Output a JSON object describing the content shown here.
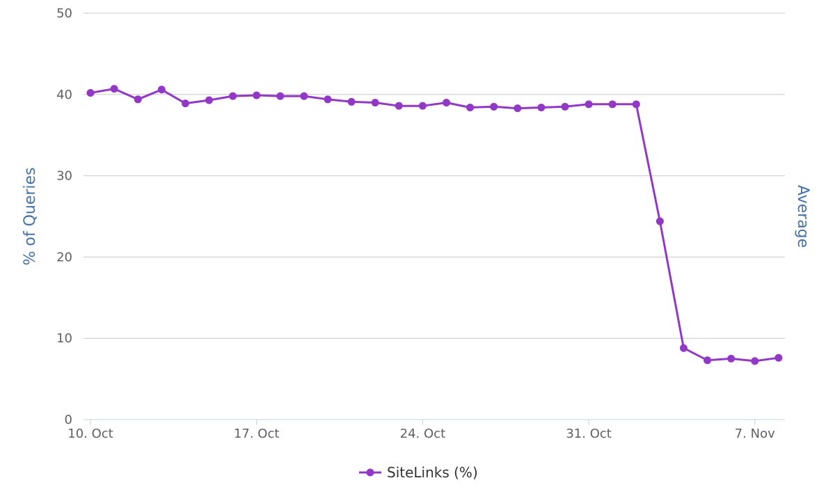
{
  "chart_data": {
    "type": "line",
    "x": [
      "2016-10-10",
      "2016-10-11",
      "2016-10-12",
      "2016-10-13",
      "2016-10-14",
      "2016-10-15",
      "2016-10-16",
      "2016-10-17",
      "2016-10-18",
      "2016-10-19",
      "2016-10-20",
      "2016-10-21",
      "2016-10-22",
      "2016-10-23",
      "2016-10-24",
      "2016-10-25",
      "2016-10-26",
      "2016-10-27",
      "2016-10-28",
      "2016-10-29",
      "2016-10-30",
      "2016-10-31",
      "2016-11-01",
      "2016-11-02",
      "2016-11-03",
      "2016-11-04",
      "2016-11-05",
      "2016-11-06",
      "2016-11-07",
      "2016-11-08"
    ],
    "series": [
      {
        "name": "SiteLinks (%)",
        "color": "#9237C8",
        "values": [
          40.2,
          40.7,
          39.4,
          40.6,
          38.9,
          39.3,
          39.8,
          39.9,
          39.8,
          39.8,
          39.4,
          39.1,
          39.0,
          38.6,
          38.6,
          39.0,
          38.4,
          38.5,
          38.3,
          38.4,
          38.5,
          38.8,
          38.8,
          38.8,
          24.4,
          8.8,
          7.3,
          7.5,
          7.2,
          7.6
        ]
      }
    ],
    "xticks": [
      "10. Oct",
      "17. Oct",
      "24. Oct",
      "31. Oct",
      "7. Nov"
    ],
    "yticks": [
      "0",
      "10",
      "20",
      "30",
      "40",
      "50"
    ],
    "ylabel": "% of Queries",
    "ylabel_right": "Average",
    "ylim": [
      0,
      50
    ],
    "grid": true,
    "legend": "bottom-center"
  }
}
